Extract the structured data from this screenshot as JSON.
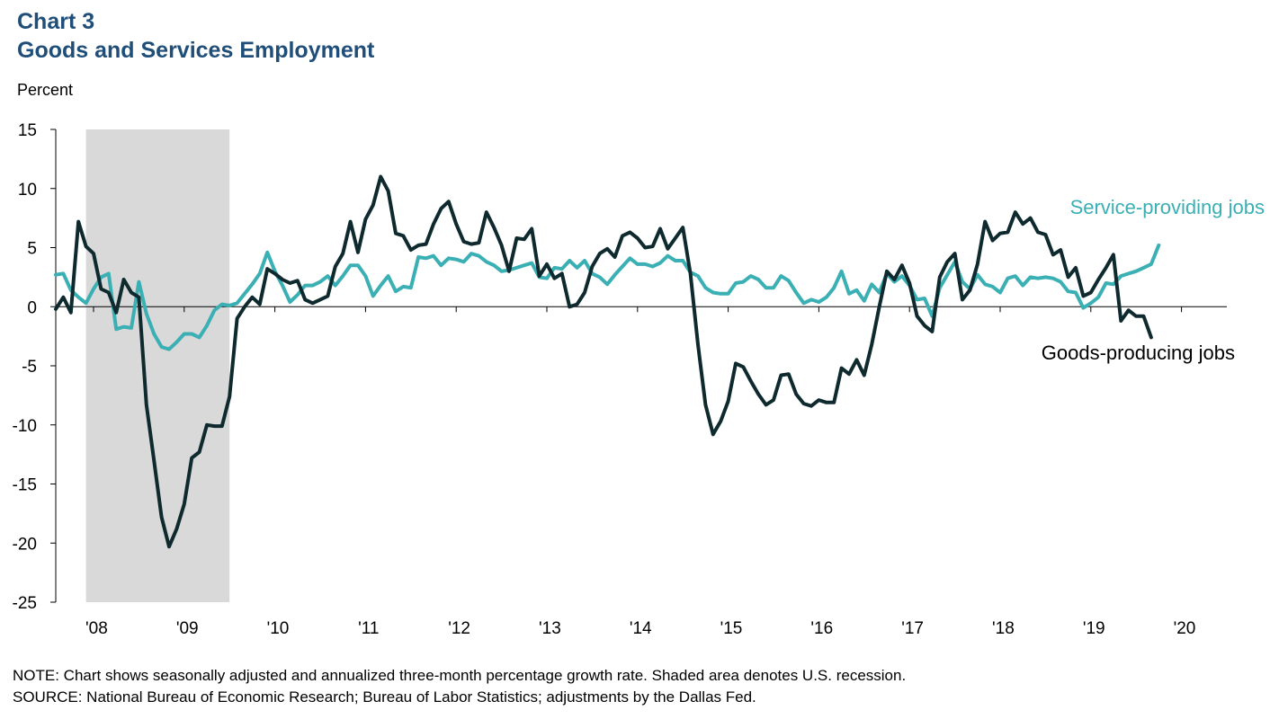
{
  "header": {
    "chart_number": "Chart 3",
    "title": "Goods and Services Employment",
    "unit": "Percent"
  },
  "notes": {
    "note": "NOTE: Chart shows seasonally adjusted and annualized  three-month percentage growth rate. Shaded area denotes U.S. recession.",
    "source": "SOURCE: National Bureau of Economic Research; Bureau of Labor Statistics; adjustments by the Dallas Fed."
  },
  "colors": {
    "goods": "#0f2a2e",
    "services": "#3aafb4",
    "recession": "#d9d9d9",
    "title": "#1f4e79"
  },
  "chart_data": {
    "type": "line",
    "ylabel": "Percent",
    "ylim": [
      -25,
      15
    ],
    "yticks": [
      15,
      10,
      5,
      0,
      -5,
      -10,
      -15,
      -20,
      -25
    ],
    "xlim": [
      2007.5833,
      2020.5
    ],
    "xticks": [
      {
        "label": "'08",
        "x": 2008.5
      },
      {
        "label": "'09",
        "x": 2009.5
      },
      {
        "label": "'10",
        "x": 2010.5
      },
      {
        "label": "'11",
        "x": 2011.5
      },
      {
        "label": "'12",
        "x": 2012.5
      },
      {
        "label": "'13",
        "x": 2013.5
      },
      {
        "label": "'14",
        "x": 2014.5
      },
      {
        "label": "'15",
        "x": 2015.5
      },
      {
        "label": "'16",
        "x": 2016.5
      },
      {
        "label": "'17",
        "x": 2017.5
      },
      {
        "label": "'18",
        "x": 2018.5
      },
      {
        "label": "'19",
        "x": 2019.5
      },
      {
        "label": "'20",
        "x": 2020.5
      }
    ],
    "recession": {
      "start": 2007.9167,
      "end": 2009.5
    },
    "series": [
      {
        "name": "Goods-producing jobs",
        "start": 2007.5833,
        "step": 0.08333,
        "values": [
          -0.2,
          0.8,
          -0.5,
          7.2,
          5.1,
          4.5,
          1.5,
          1.2,
          -0.5,
          2.3,
          1.2,
          0.8,
          -8.3,
          -13.0,
          -17.8,
          -20.3,
          -18.8,
          -16.7,
          -12.8,
          -12.3,
          -10.0,
          -10.1,
          -10.1,
          -7.6,
          -1.0,
          0.0,
          0.8,
          0.2,
          3.2,
          2.8,
          2.3,
          2.0,
          2.2,
          0.6,
          0.3,
          0.6,
          0.9,
          3.4,
          4.5,
          7.2,
          4.6,
          7.4,
          8.6,
          11.0,
          9.8,
          6.2,
          6.0,
          4.8,
          5.2,
          5.3,
          7.0,
          8.3,
          8.9,
          7.0,
          5.5,
          5.3,
          5.4,
          8.0,
          6.7,
          5.2,
          3.0,
          5.8,
          5.7,
          6.6,
          2.6,
          3.6,
          2.4,
          2.8,
          0.0,
          0.2,
          1.2,
          3.4,
          4.5,
          4.9,
          4.2,
          6.0,
          6.3,
          5.8,
          5.0,
          5.1,
          6.6,
          4.9,
          5.8,
          6.7,
          2.8,
          -3.2,
          -8.3,
          -10.8,
          -9.7,
          -8.0,
          -4.8,
          -5.1,
          -6.3,
          -7.4,
          -8.3,
          -7.9,
          -5.8,
          -5.7,
          -7.4,
          -8.2,
          -8.4,
          -7.9,
          -8.1,
          -8.1,
          -5.2,
          -5.7,
          -4.5,
          -5.8,
          -3.2,
          0.0,
          3.0,
          2.3,
          3.5,
          2.0,
          -0.8,
          -1.6,
          -2.1,
          2.5,
          3.8,
          4.5,
          0.6,
          1.4,
          3.6,
          7.2,
          5.6,
          6.2,
          6.3,
          8.0,
          7.0,
          7.5,
          6.3,
          6.1,
          4.4,
          4.8,
          2.5,
          3.3,
          0.9,
          1.2,
          2.3,
          3.3,
          4.4,
          -1.2,
          -0.3,
          -0.8,
          -0.8,
          -2.6
        ]
      },
      {
        "name": "Service-providing jobs",
        "start": 2007.5833,
        "step": 0.08333,
        "values": [
          2.7,
          2.8,
          1.4,
          0.8,
          0.3,
          1.5,
          2.5,
          2.8,
          -1.9,
          -1.7,
          -1.8,
          2.1,
          -0.6,
          -2.3,
          -3.4,
          -3.6,
          -3.0,
          -2.3,
          -2.3,
          -2.6,
          -1.6,
          -0.3,
          0.2,
          0.1,
          0.3,
          1.1,
          1.9,
          2.8,
          4.6,
          3.0,
          1.8,
          0.4,
          1.0,
          1.8,
          1.8,
          2.1,
          2.6,
          1.8,
          2.6,
          3.5,
          3.5,
          2.6,
          0.9,
          1.8,
          2.6,
          1.3,
          1.7,
          1.6,
          4.2,
          4.1,
          4.3,
          3.5,
          4.1,
          4.0,
          3.8,
          4.5,
          4.3,
          3.8,
          3.5,
          3.0,
          3.1,
          3.3,
          3.5,
          3.7,
          2.5,
          2.4,
          3.3,
          3.2,
          3.9,
          3.3,
          3.9,
          2.8,
          2.5,
          1.9,
          2.7,
          3.4,
          4.1,
          3.6,
          3.6,
          3.4,
          3.7,
          4.3,
          3.9,
          3.9,
          2.9,
          2.6,
          1.6,
          1.2,
          1.1,
          1.1,
          2.0,
          2.1,
          2.6,
          2.3,
          1.6,
          1.6,
          2.6,
          2.2,
          1.2,
          0.3,
          0.6,
          0.4,
          0.8,
          1.6,
          3.0,
          1.1,
          1.4,
          0.5,
          1.9,
          1.2,
          2.8,
          2.1,
          2.6,
          1.8,
          0.6,
          0.7,
          -0.8,
          1.6,
          2.7,
          3.8,
          2.1,
          1.5,
          2.7,
          1.9,
          1.7,
          1.2,
          2.4,
          2.6,
          1.8,
          2.5,
          2.4,
          2.5,
          2.4,
          2.1,
          1.3,
          1.2,
          -0.1,
          0.3,
          0.8,
          2.0,
          1.9,
          2.6,
          2.8,
          3.0,
          3.3,
          3.6,
          5.2
        ]
      }
    ],
    "annotations": [
      {
        "text": "Service-providing jobs",
        "series": "Service-providing jobs"
      },
      {
        "text": "Goods-producing jobs",
        "series": "Goods-producing jobs"
      }
    ]
  }
}
